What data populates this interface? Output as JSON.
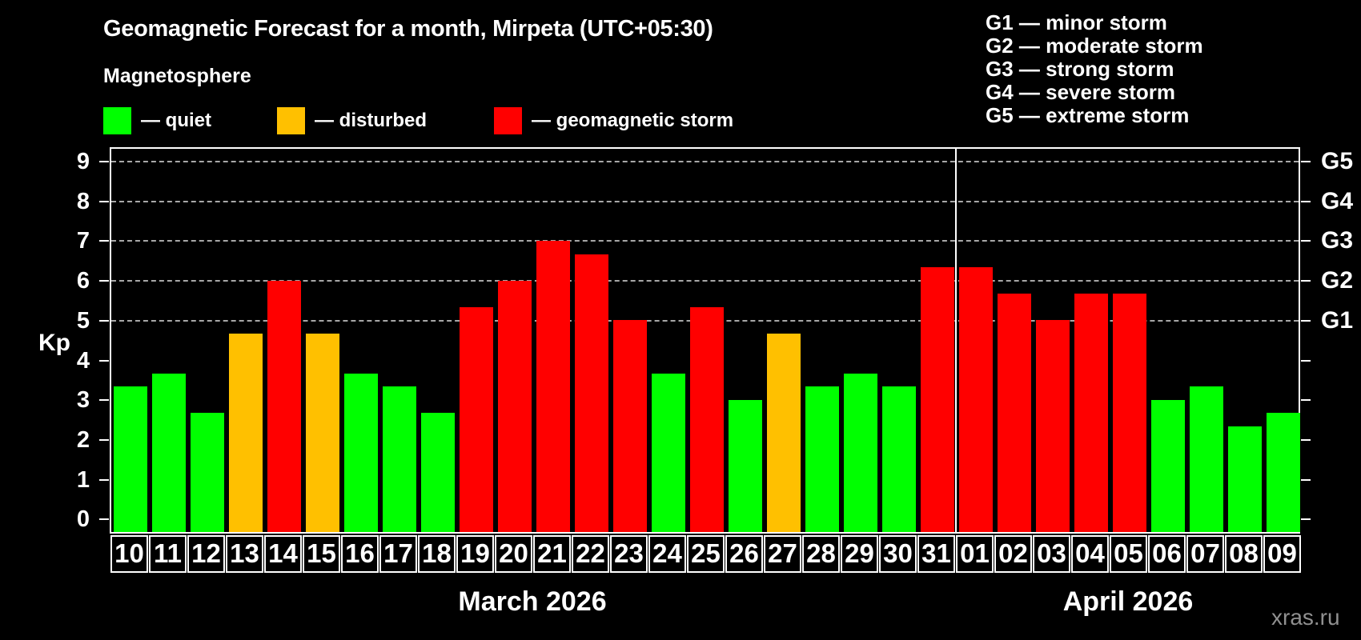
{
  "header": {
    "title": "Geomagnetic Forecast for a month, Mirpeta (UTC+05:30)",
    "subtitle": "Magnetosphere"
  },
  "legend": {
    "items": [
      {
        "label": "— quiet",
        "status": "quiet",
        "color": "#00ff00"
      },
      {
        "label": "— disturbed",
        "status": "disturbed",
        "color": "#ffc000"
      },
      {
        "label": "— geomagnetic storm",
        "status": "storm",
        "color": "#ff0000"
      }
    ]
  },
  "g_scale_legend": {
    "items": [
      "G1 — minor storm",
      "G2 — moderate storm",
      "G3 — strong storm",
      "G4 — severe storm",
      "G5 — extreme storm"
    ]
  },
  "watermark": "xras.ru",
  "chart_data": {
    "type": "bar",
    "title": "Geomagnetic Forecast for a month, Mirpeta (UTC+05:30)",
    "ylabel": "Kp",
    "ylim": [
      0,
      9.4
    ],
    "grid": "dashed horizontal at Kp 5-9 only",
    "legend_position": "top",
    "y_ticks": [
      0,
      1,
      2,
      3,
      4,
      5,
      6,
      7,
      8,
      9
    ],
    "right_axis_labels": [
      {
        "label": "G1",
        "kp": 5
      },
      {
        "label": "G2",
        "kp": 6
      },
      {
        "label": "G3",
        "kp": 7
      },
      {
        "label": "G4",
        "kp": 8
      },
      {
        "label": "G5",
        "kp": 9
      }
    ],
    "gridlines_at": [
      5,
      6,
      7,
      8,
      9
    ],
    "months": [
      {
        "label": "March 2026",
        "days": 22
      },
      {
        "label": "April 2026",
        "days": 9
      }
    ],
    "categories": [
      "10",
      "11",
      "12",
      "13",
      "14",
      "15",
      "16",
      "17",
      "18",
      "19",
      "20",
      "21",
      "22",
      "23",
      "24",
      "25",
      "26",
      "27",
      "28",
      "29",
      "30",
      "31",
      "01",
      "02",
      "03",
      "04",
      "05",
      "06",
      "07",
      "08",
      "09"
    ],
    "values": [
      3.33,
      3.67,
      2.67,
      4.67,
      6,
      4.67,
      3.67,
      3.33,
      2.67,
      5.33,
      6,
      7,
      6.67,
      5,
      3.67,
      5.33,
      3,
      4.67,
      3.33,
      3.67,
      3.33,
      6.33,
      6.33,
      5.67,
      5,
      5.67,
      5.67,
      3,
      3.33,
      2.33,
      2.67
    ],
    "thresholds": {
      "disturbed_from": 4,
      "storm_from": 5
    },
    "colors": {
      "quiet": "#00ff00",
      "disturbed": "#ffc000",
      "storm": "#ff0000"
    }
  }
}
